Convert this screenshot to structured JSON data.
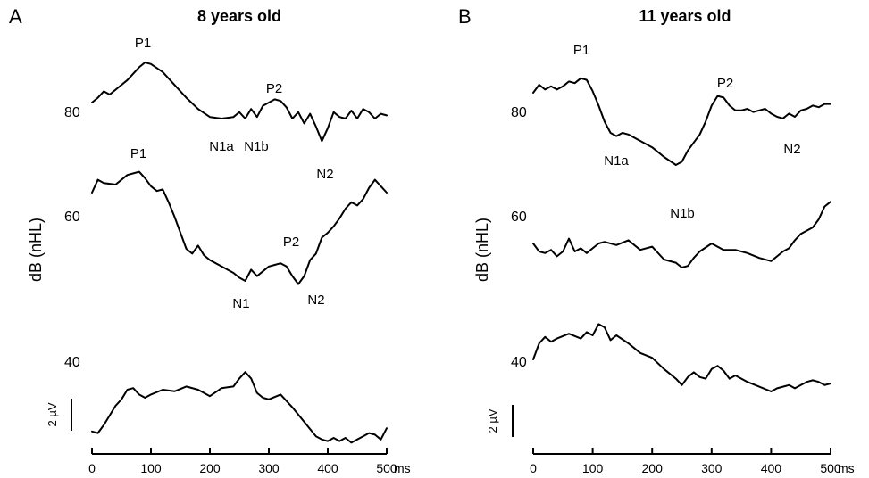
{
  "chart_data": [
    {
      "type": "line",
      "panel": "A",
      "title": "8 years old",
      "ylabel": "dB (nHL)",
      "x_ticks": [
        0,
        100,
        200,
        300,
        400,
        500
      ],
      "x_unit": "ms",
      "xlim": [
        0,
        500
      ],
      "scale_bar": "2 µV",
      "series": [
        {
          "name": "80",
          "x": [
            0,
            10,
            20,
            30,
            40,
            60,
            80,
            90,
            100,
            120,
            140,
            160,
            180,
            200,
            220,
            240,
            250,
            260,
            270,
            280,
            290,
            300,
            310,
            320,
            330,
            340,
            350,
            360,
            370,
            380,
            390,
            400,
            410,
            420,
            430,
            440,
            450,
            460,
            470,
            480,
            490,
            500
          ],
          "y": [
            0.0,
            0.3,
            0.7,
            0.5,
            0.8,
            1.4,
            2.2,
            2.5,
            2.4,
            1.9,
            1.1,
            0.3,
            -0.4,
            -0.9,
            -1.0,
            -0.9,
            -0.6,
            -1.0,
            -0.4,
            -0.9,
            -0.2,
            0.0,
            0.2,
            0.1,
            -0.3,
            -1.0,
            -0.6,
            -1.3,
            -0.7,
            -1.5,
            -2.4,
            -1.6,
            -0.6,
            -0.9,
            -1.0,
            -0.5,
            -1.0,
            -0.4,
            -0.6,
            -1.0,
            -0.7,
            -0.8
          ]
        },
        {
          "name": "60",
          "x": [
            0,
            10,
            20,
            40,
            60,
            80,
            90,
            100,
            110,
            120,
            130,
            140,
            150,
            160,
            170,
            180,
            190,
            200,
            220,
            240,
            250,
            260,
            270,
            280,
            290,
            300,
            310,
            320,
            330,
            340,
            350,
            360,
            370,
            380,
            390,
            400,
            410,
            420,
            430,
            440,
            450,
            460,
            470,
            480,
            490,
            500
          ],
          "y": [
            0.0,
            0.8,
            0.6,
            0.5,
            1.1,
            1.3,
            0.9,
            0.4,
            0.1,
            0.2,
            -0.6,
            -1.5,
            -2.5,
            -3.5,
            -3.8,
            -3.3,
            -3.9,
            -4.2,
            -4.6,
            -5.0,
            -5.3,
            -5.5,
            -4.8,
            -5.2,
            -4.9,
            -4.6,
            -4.5,
            -4.4,
            -4.6,
            -5.2,
            -5.7,
            -5.2,
            -4.2,
            -3.8,
            -2.8,
            -2.5,
            -2.1,
            -1.6,
            -1.0,
            -0.6,
            -0.8,
            -0.4,
            0.3,
            0.8,
            0.4,
            0.0
          ]
        },
        {
          "name": "40",
          "x": [
            0,
            10,
            20,
            40,
            50,
            60,
            70,
            80,
            90,
            100,
            120,
            140,
            160,
            180,
            200,
            220,
            240,
            250,
            260,
            270,
            280,
            290,
            300,
            320,
            340,
            360,
            380,
            390,
            400,
            410,
            420,
            430,
            440,
            450,
            460,
            470,
            480,
            490,
            500
          ],
          "y": [
            -2.6,
            -2.7,
            -2.2,
            -1.0,
            -0.6,
            0.0,
            0.1,
            -0.3,
            -0.5,
            -0.3,
            0.0,
            -0.1,
            0.2,
            0.0,
            -0.4,
            0.1,
            0.2,
            0.7,
            1.1,
            0.7,
            -0.2,
            -0.5,
            -0.6,
            -0.3,
            -1.1,
            -2.0,
            -2.9,
            -3.1,
            -3.2,
            -3.0,
            -3.2,
            -3.0,
            -3.3,
            -3.1,
            -2.9,
            -2.7,
            -2.8,
            -3.1,
            -2.4
          ]
        }
      ],
      "annotations": [
        {
          "text": "P1",
          "trace": "80"
        },
        {
          "text": "N1a",
          "trace": "80"
        },
        {
          "text": "N1b",
          "trace": "80"
        },
        {
          "text": "P2",
          "trace": "80"
        },
        {
          "text": "N2",
          "trace": "80"
        },
        {
          "text": "P1",
          "trace": "60"
        },
        {
          "text": "N1",
          "trace": "60"
        },
        {
          "text": "P2",
          "trace": "60"
        },
        {
          "text": "N2",
          "trace": "60"
        }
      ]
    },
    {
      "type": "line",
      "panel": "B",
      "title": "11 years old",
      "ylabel": "dB (nHL)",
      "x_ticks": [
        0,
        100,
        200,
        300,
        400,
        500
      ],
      "x_unit": "ms",
      "xlim": [
        0,
        500
      ],
      "scale_bar": "2 µV",
      "series": [
        {
          "name": "80",
          "x": [
            0,
            10,
            20,
            30,
            40,
            50,
            60,
            70,
            80,
            90,
            100,
            110,
            120,
            130,
            140,
            150,
            160,
            170,
            180,
            190,
            200,
            220,
            240,
            250,
            260,
            270,
            280,
            290,
            300,
            310,
            320,
            330,
            340,
            350,
            360,
            370,
            380,
            390,
            400,
            410,
            420,
            430,
            440,
            450,
            460,
            470,
            480,
            490,
            500
          ],
          "y": [
            0.0,
            0.5,
            0.2,
            0.4,
            0.2,
            0.4,
            0.7,
            0.6,
            0.9,
            0.8,
            0.1,
            -0.8,
            -1.8,
            -2.5,
            -2.7,
            -2.5,
            -2.6,
            -2.8,
            -3.0,
            -3.2,
            -3.4,
            -4.0,
            -4.5,
            -4.3,
            -3.6,
            -3.1,
            -2.6,
            -1.8,
            -0.8,
            -0.2,
            -0.3,
            -0.8,
            -1.1,
            -1.1,
            -1.0,
            -1.2,
            -1.1,
            -1.0,
            -1.3,
            -1.5,
            -1.6,
            -1.3,
            -1.5,
            -1.1,
            -1.0,
            -0.8,
            -0.9,
            -0.7,
            -0.7
          ]
        },
        {
          "name": "60",
          "x": [
            0,
            10,
            20,
            30,
            40,
            50,
            60,
            70,
            80,
            90,
            100,
            110,
            120,
            140,
            160,
            180,
            200,
            220,
            240,
            250,
            260,
            270,
            280,
            300,
            320,
            340,
            360,
            380,
            400,
            410,
            420,
            430,
            440,
            450,
            460,
            470,
            480,
            490,
            500
          ],
          "y": [
            0.0,
            -0.5,
            -0.6,
            -0.4,
            -0.8,
            -0.5,
            0.3,
            -0.5,
            -0.3,
            -0.6,
            -0.3,
            0.0,
            0.1,
            -0.1,
            0.2,
            -0.4,
            -0.2,
            -1.0,
            -1.2,
            -1.5,
            -1.4,
            -0.9,
            -0.5,
            0.0,
            -0.4,
            -0.4,
            -0.6,
            -0.9,
            -1.1,
            -0.8,
            -0.5,
            -0.3,
            0.2,
            0.6,
            0.8,
            1.0,
            1.5,
            2.3,
            2.6
          ]
        },
        {
          "name": "40",
          "x": [
            0,
            10,
            20,
            30,
            40,
            60,
            80,
            90,
            100,
            110,
            120,
            130,
            140,
            160,
            180,
            200,
            220,
            240,
            250,
            260,
            270,
            280,
            290,
            300,
            310,
            320,
            330,
            340,
            360,
            380,
            400,
            410,
            420,
            430,
            440,
            450,
            460,
            470,
            480,
            490,
            500
          ],
          "y": [
            0.0,
            1.0,
            1.4,
            1.1,
            1.3,
            1.6,
            1.3,
            1.7,
            1.5,
            2.2,
            2.0,
            1.2,
            1.5,
            1.0,
            0.4,
            0.1,
            -0.6,
            -1.2,
            -1.6,
            -1.1,
            -0.8,
            -1.1,
            -1.2,
            -0.6,
            -0.4,
            -0.7,
            -1.2,
            -1.0,
            -1.4,
            -1.7,
            -2.0,
            -1.8,
            -1.7,
            -1.6,
            -1.8,
            -1.6,
            -1.4,
            -1.3,
            -1.4,
            -1.6,
            -1.5
          ]
        }
      ],
      "annotations": [
        {
          "text": "P1",
          "trace": "80"
        },
        {
          "text": "N1a",
          "trace": "80"
        },
        {
          "text": "N1b",
          "trace": "80"
        },
        {
          "text": "P2",
          "trace": "80"
        },
        {
          "text": "N2",
          "trace": "80"
        }
      ]
    }
  ]
}
